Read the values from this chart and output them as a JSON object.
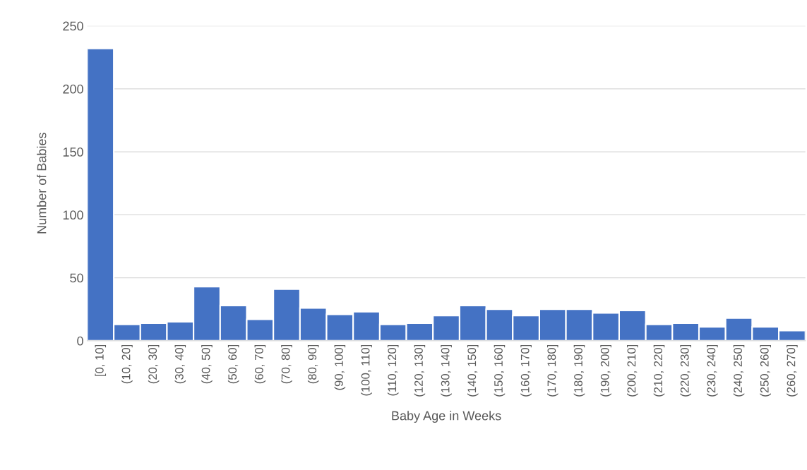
{
  "chart_data": {
    "type": "bar",
    "xlabel": "Baby Age in Weeks",
    "ylabel": "Number of Babies",
    "categories": [
      "[0, 10]",
      "(10, 20]",
      "(20, 30]",
      "(30, 40]",
      "(40, 50]",
      "(50, 60]",
      "(60, 70]",
      "(70, 80]",
      "(80, 90]",
      "(90, 100]",
      "(100, 110]",
      "(110, 120]",
      "(120, 130]",
      "(130, 140]",
      "(140, 150]",
      "(150, 160]",
      "(160, 170]",
      "(170, 180]",
      "(180, 190]",
      "(190, 200]",
      "(200, 210]",
      "(210, 220]",
      "(220, 230]",
      "(230, 240]",
      "(240, 250]",
      "(250, 260]",
      "(260, 270]"
    ],
    "values": [
      232,
      13,
      14,
      15,
      43,
      28,
      17,
      41,
      26,
      21,
      23,
      13,
      14,
      20,
      28,
      25,
      20,
      25,
      25,
      22,
      24,
      13,
      14,
      11,
      18,
      11,
      8
    ],
    "color": "#4472c4",
    "ylim": [
      0,
      250
    ],
    "yticks": [
      0,
      50,
      100,
      150,
      200,
      250
    ],
    "grid": "y",
    "legend": false
  }
}
